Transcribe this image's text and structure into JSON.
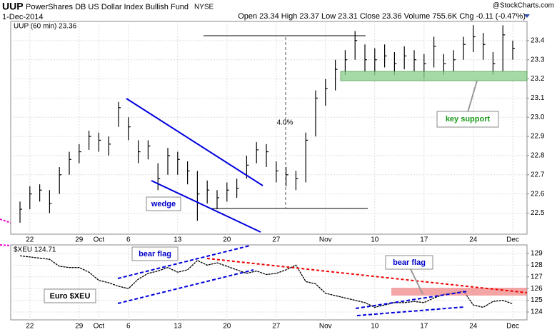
{
  "header": {
    "symbol": "UUP",
    "name": "PowerShares DB US Dollar Index Bullish Fund",
    "exchange": "NYSE",
    "date": "1-Dec-2014",
    "quote": "Open 23.34 High 23.37 Low 23.31 Close 23.36 Volume 755.6K Chg -0.11 (-0.47%)",
    "credit": "@StockCharts.com"
  },
  "chart_data": [
    {
      "type": "ohlc",
      "legend": "UUP (60 min) 23.36",
      "color": "#000000",
      "annotations": {
        "wedge": "wedge",
        "move": "4.0%",
        "support": "key support"
      },
      "categories": [
        null,
        "22",
        null,
        null,
        null,
        null,
        "29",
        null,
        "Oct",
        null,
        null,
        "6",
        null,
        null,
        null,
        null,
        "13",
        null,
        null,
        null,
        null,
        "20",
        null,
        null,
        null,
        null,
        "27",
        null,
        null,
        null,
        null,
        "Nov",
        null,
        null,
        null,
        null,
        "10",
        null,
        null,
        null,
        null,
        "17",
        null,
        null,
        null,
        null,
        "24",
        null,
        null,
        null,
        "Dec"
      ],
      "series": [
        {
          "name": "high",
          "values": [
            22.56,
            22.64,
            22.65,
            22.62,
            22.74,
            22.82,
            22.86,
            22.93,
            22.92,
            22.9,
            23.08,
            23.0,
            22.88,
            22.88,
            22.76,
            22.84,
            22.82,
            22.77,
            22.72,
            22.67,
            22.62,
            22.66,
            22.68,
            22.8,
            22.87,
            22.86,
            22.77,
            22.74,
            22.72,
            22.92,
            23.14,
            23.2,
            23.3,
            23.35,
            23.45,
            23.38,
            23.36,
            23.38,
            23.34,
            23.37,
            23.35,
            23.33,
            23.42,
            23.33,
            23.35,
            23.42,
            23.48,
            23.44,
            23.34,
            23.48,
            23.4
          ]
        },
        {
          "name": "low",
          "values": [
            22.45,
            22.52,
            22.56,
            22.5,
            22.6,
            22.7,
            22.76,
            22.83,
            22.82,
            22.8,
            22.95,
            22.88,
            22.76,
            22.78,
            22.62,
            22.7,
            22.7,
            22.65,
            22.46,
            22.55,
            22.52,
            22.56,
            22.58,
            22.68,
            22.76,
            22.74,
            22.66,
            22.64,
            22.62,
            22.66,
            22.9,
            23.06,
            23.14,
            23.22,
            23.3,
            23.24,
            23.22,
            23.26,
            23.22,
            23.25,
            23.24,
            23.2,
            23.26,
            23.22,
            23.24,
            23.3,
            23.34,
            23.3,
            23.22,
            23.24,
            23.3
          ]
        },
        {
          "name": "close",
          "values": [
            22.52,
            22.6,
            22.62,
            22.55,
            22.7,
            22.78,
            22.82,
            22.9,
            22.88,
            22.86,
            23.05,
            22.95,
            22.82,
            22.85,
            22.68,
            22.8,
            22.78,
            22.72,
            22.6,
            22.62,
            22.58,
            22.62,
            22.63,
            22.75,
            22.83,
            22.82,
            22.72,
            22.7,
            22.68,
            22.88,
            23.1,
            23.15,
            23.25,
            23.3,
            23.4,
            23.3,
            23.3,
            23.32,
            23.28,
            23.32,
            23.3,
            23.28,
            23.37,
            23.28,
            23.3,
            23.38,
            23.42,
            23.38,
            23.28,
            23.43,
            23.36
          ]
        }
      ],
      "ylim": [
        22.39,
        23.5
      ],
      "yticks": [
        22.5,
        22.6,
        22.7,
        22.8,
        22.9,
        {
          "value": 23,
          "label": "23.0"
        },
        23.1,
        23.2,
        23.3,
        23.4
      ],
      "grid": true
    },
    {
      "type": "line",
      "legend": "$XEU 124.71",
      "annotations": {
        "flag1": "bear flag",
        "flag2": "bear flag",
        "euro": "Euro $XEU"
      },
      "categories": [
        null,
        "22",
        null,
        null,
        null,
        null,
        "29",
        null,
        "Oct",
        null,
        null,
        "6",
        null,
        null,
        null,
        null,
        "13",
        null,
        null,
        null,
        null,
        "20",
        null,
        null,
        null,
        null,
        "27",
        null,
        null,
        null,
        null,
        "Nov",
        null,
        null,
        null,
        null,
        "10",
        null,
        null,
        null,
        null,
        "17",
        null,
        null,
        null,
        null,
        "24",
        null,
        null,
        null,
        "Dec"
      ],
      "series": [
        {
          "name": "$XEU",
          "color": "#000000",
          "values": [
            128.8,
            128.7,
            128.6,
            128.5,
            127.9,
            127.8,
            127.8,
            127.4,
            126.7,
            126.5,
            126.2,
            126.0,
            126.8,
            127.3,
            127.5,
            127.8,
            127.4,
            127.6,
            128.4,
            128.0,
            128.2,
            127.9,
            127.6,
            127.3,
            127.5,
            127.2,
            127.3,
            127.6,
            128.0,
            126.6,
            126.4,
            125.6,
            125.4,
            125.2,
            125.0,
            124.8,
            124.4,
            124.6,
            124.8,
            124.8,
            124.9,
            124.8,
            125.2,
            125.5,
            125.6,
            125.8,
            124.6,
            124.4,
            124.9,
            125.0,
            124.7
          ]
        }
      ],
      "ylim": [
        123.33,
        129.73
      ],
      "yticks": [
        124,
        125,
        126,
        127,
        128,
        129
      ],
      "grid": true
    }
  ]
}
